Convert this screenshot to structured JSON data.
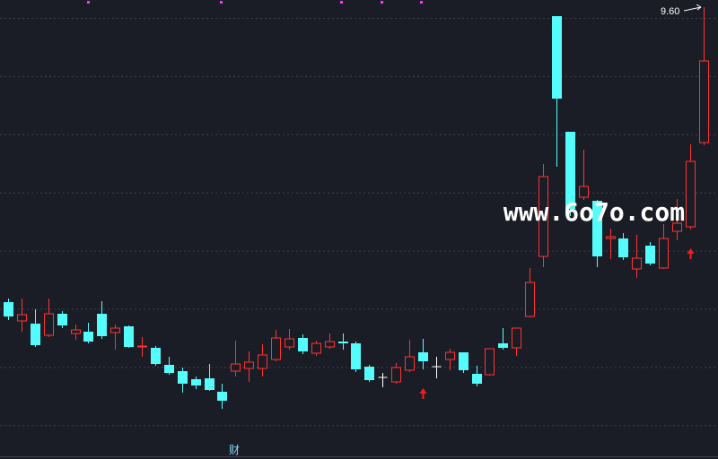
{
  "chart_data": {
    "type": "candlestick",
    "open": [
      6.31,
      6.1,
      6.07,
      5.94,
      6.18,
      5.96,
      5.98,
      6.18,
      5.97,
      6.04,
      5.81,
      5.8,
      5.61,
      5.54,
      5.45,
      5.46,
      5.31,
      5.54,
      5.57,
      5.57,
      5.67,
      5.81,
      5.91,
      5.74,
      5.81,
      5.87,
      5.85,
      5.59,
      5.47,
      5.42,
      5.55,
      5.75,
      5.59,
      5.67,
      5.75,
      5.51,
      5.5,
      5.85,
      5.8,
      6.15,
      6.82,
      9.5,
      8.21,
      7.48,
      7.44,
      7.02,
      7.02,
      6.68,
      6.94,
      6.69,
      7.1,
      7.15,
      8.09
    ],
    "high": [
      6.35,
      6.35,
      6.23,
      6.35,
      6.21,
      6.06,
      6.08,
      6.32,
      6.06,
      6.05,
      5.92,
      5.82,
      5.7,
      5.58,
      5.48,
      5.62,
      5.4,
      5.88,
      5.76,
      5.84,
      6.0,
      6.01,
      5.95,
      5.88,
      5.96,
      5.96,
      5.87,
      5.61,
      5.52,
      5.63,
      5.89,
      5.9,
      5.7,
      5.79,
      5.75,
      5.6,
      5.79,
      6.02,
      6.02,
      6.69,
      7.85,
      9.5,
      8.21,
      8.01,
      7.45,
      7.13,
      7.08,
      7.06,
      6.98,
      7.18,
      7.46,
      8.07,
      9.6
    ],
    "low": [
      6.11,
      5.98,
      5.81,
      5.92,
      6.02,
      5.89,
      5.85,
      5.9,
      5.78,
      5.8,
      5.7,
      5.6,
      5.5,
      5.3,
      5.34,
      5.32,
      5.12,
      5.48,
      5.42,
      5.48,
      5.65,
      5.78,
      5.73,
      5.71,
      5.79,
      5.78,
      5.53,
      5.42,
      5.36,
      5.4,
      5.53,
      5.56,
      5.46,
      5.55,
      5.52,
      5.37,
      5.49,
      5.78,
      5.71,
      6.14,
      6.7,
      7.82,
      7.27,
      7.45,
      6.7,
      6.79,
      6.78,
      6.58,
      6.72,
      6.68,
      7.0,
      7.12,
      8.06
    ],
    "close": [
      6.15,
      6.17,
      5.83,
      6.18,
      6.05,
      6.0,
      5.87,
      5.93,
      6.02,
      5.81,
      5.82,
      5.62,
      5.52,
      5.4,
      5.38,
      5.33,
      5.21,
      5.62,
      5.64,
      5.72,
      5.91,
      5.9,
      5.76,
      5.85,
      5.87,
      5.85,
      5.56,
      5.44,
      5.47,
      5.58,
      5.7,
      5.65,
      5.59,
      5.75,
      5.55,
      5.4,
      5.79,
      5.8,
      6.02,
      6.53,
      7.71,
      8.58,
      7.35,
      7.6,
      6.82,
      7.04,
      6.81,
      6.8,
      6.74,
      7.02,
      7.19,
      7.88,
      9.0
    ],
    "up_color": "#ff3232",
    "down_color": "#54fcfc",
    "flat_color": "#ffffff",
    "ylim": [
      4.58,
      9.68
    ],
    "max_label": {
      "value": 9.6,
      "label": "9.60"
    },
    "signals": [
      31,
      51
    ],
    "signal_color": "#ff1a1a"
  },
  "watermark": "www.6o7o.com",
  "event_marker": "财"
}
